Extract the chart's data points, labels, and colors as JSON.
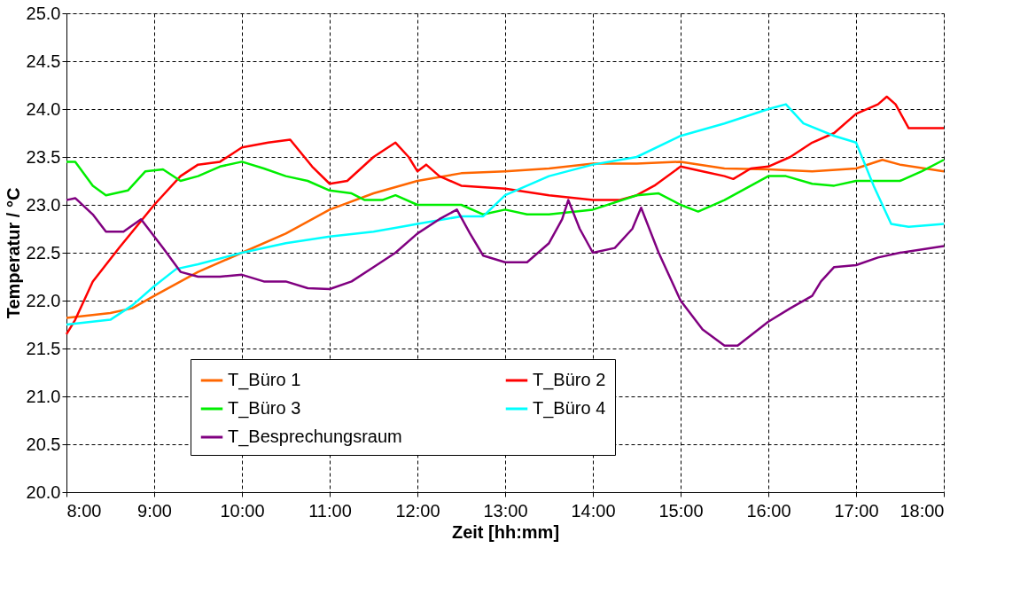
{
  "chart_data": {
    "type": "line",
    "xlabel": "Zeit [hh:mm]",
    "ylabel": "Temperatur / °C",
    "xlim": [
      8,
      18
    ],
    "ylim": [
      20,
      25
    ],
    "xticks": [
      {
        "value": 8,
        "label": "8:00"
      },
      {
        "value": 9,
        "label": "9:00"
      },
      {
        "value": 10,
        "label": "10:00"
      },
      {
        "value": 11,
        "label": "11:00"
      },
      {
        "value": 12,
        "label": "12:00"
      },
      {
        "value": 13,
        "label": "13:00"
      },
      {
        "value": 14,
        "label": "14:00"
      },
      {
        "value": 15,
        "label": "15:00"
      },
      {
        "value": 16,
        "label": "16:00"
      },
      {
        "value": 17,
        "label": "17:00"
      },
      {
        "value": 18,
        "label": "18:00"
      }
    ],
    "yticks": [
      {
        "value": 20,
        "label": "20.0"
      },
      20.5,
      {
        "value": 21,
        "label": "21.0"
      },
      21.5,
      {
        "value": 22,
        "label": "22.0"
      },
      22.5,
      {
        "value": 23,
        "label": "23.0"
      },
      23.5,
      {
        "value": 24,
        "label": "24.0"
      },
      24.5,
      {
        "value": 25,
        "label": "25.0"
      }
    ],
    "grid": true,
    "legend": "bottom left",
    "line_style": "solid",
    "marker": "none",
    "series": [
      {
        "name": "T_Büro 1",
        "color": "#ff6600",
        "x": [
          8,
          8.5,
          8.75,
          9,
          9.5,
          10,
          10.5,
          11,
          11.5,
          12,
          12.5,
          13,
          13.5,
          14,
          14.5,
          15,
          15.5,
          16,
          16.5,
          17,
          17.3,
          17.5,
          18
        ],
        "values": [
          21.82,
          21.87,
          21.92,
          22.05,
          22.3,
          22.5,
          22.7,
          22.95,
          23.12,
          23.25,
          23.33,
          23.35,
          23.38,
          23.43,
          23.43,
          23.45,
          23.38,
          23.37,
          23.35,
          23.38,
          23.47,
          23.42,
          23.35
        ]
      },
      {
        "name": "T_Büro 2",
        "color": "#ff0000",
        "x": [
          8,
          8.1,
          8.3,
          8.6,
          9,
          9.3,
          9.5,
          9.75,
          10,
          10.3,
          10.55,
          10.8,
          11,
          11.2,
          11.5,
          11.75,
          11.9,
          12,
          12.1,
          12.25,
          12.5,
          13,
          13.5,
          14,
          14.3,
          14.5,
          14.7,
          15,
          15.25,
          15.5,
          15.6,
          15.8,
          16,
          16.25,
          16.5,
          16.75,
          17,
          17.25,
          17.35,
          17.45,
          17.6,
          18
        ],
        "values": [
          21.65,
          21.8,
          22.2,
          22.55,
          23.0,
          23.3,
          23.42,
          23.45,
          23.6,
          23.65,
          23.68,
          23.4,
          23.22,
          23.25,
          23.5,
          23.65,
          23.5,
          23.35,
          23.42,
          23.3,
          23.2,
          23.17,
          23.1,
          23.05,
          23.05,
          23.1,
          23.2,
          23.4,
          23.35,
          23.3,
          23.27,
          23.38,
          23.4,
          23.5,
          23.65,
          23.75,
          23.95,
          24.05,
          24.13,
          24.05,
          23.8,
          23.8
        ]
      },
      {
        "name": "T_Büro 3",
        "color": "#00ee00",
        "x": [
          8,
          8.1,
          8.3,
          8.45,
          8.7,
          8.9,
          9.1,
          9.3,
          9.5,
          9.75,
          10,
          10.25,
          10.5,
          10.75,
          11,
          11.25,
          11.4,
          11.6,
          11.75,
          12,
          12.5,
          12.75,
          13,
          13.25,
          13.5,
          14,
          14.5,
          14.75,
          15,
          15.2,
          15.5,
          16,
          16.2,
          16.5,
          16.75,
          17,
          17.5,
          17.75,
          18
        ],
        "values": [
          23.45,
          23.45,
          23.2,
          23.1,
          23.15,
          23.35,
          23.37,
          23.25,
          23.3,
          23.4,
          23.45,
          23.38,
          23.3,
          23.25,
          23.15,
          23.12,
          23.05,
          23.05,
          23.1,
          23.0,
          23.0,
          22.9,
          22.95,
          22.9,
          22.9,
          22.95,
          23.1,
          23.12,
          23.0,
          22.93,
          23.05,
          23.3,
          23.3,
          23.22,
          23.2,
          23.25,
          23.25,
          23.35,
          23.47
        ]
      },
      {
        "name": "T_Büro 4",
        "color": "#00ffff",
        "x": [
          8,
          8.5,
          8.75,
          9,
          9.25,
          9.5,
          10,
          10.5,
          11,
          11.5,
          12,
          12.5,
          12.75,
          13,
          13.5,
          14,
          14.5,
          15,
          15.5,
          16,
          16.2,
          16.4,
          16.75,
          17,
          17.2,
          17.4,
          17.6,
          18
        ],
        "values": [
          21.75,
          21.8,
          21.95,
          22.15,
          22.33,
          22.38,
          22.5,
          22.6,
          22.67,
          22.72,
          22.8,
          22.88,
          22.88,
          23.1,
          23.3,
          23.42,
          23.5,
          23.72,
          23.85,
          24.0,
          24.05,
          23.85,
          23.72,
          23.65,
          23.2,
          22.8,
          22.77,
          22.8
        ]
      },
      {
        "name": "T_Besprechungsraum",
        "color": "#800080",
        "x": [
          8,
          8.1,
          8.3,
          8.45,
          8.65,
          8.85,
          9.1,
          9.3,
          9.5,
          9.75,
          10,
          10.25,
          10.5,
          10.75,
          11,
          11.25,
          11.5,
          11.75,
          12,
          12.25,
          12.45,
          12.6,
          12.75,
          13,
          13.25,
          13.5,
          13.65,
          13.72,
          13.85,
          14,
          14.25,
          14.45,
          14.55,
          14.75,
          15,
          15.25,
          15.5,
          15.65,
          16,
          16.25,
          16.5,
          16.6,
          16.75,
          17,
          17.25,
          17.5,
          18
        ],
        "values": [
          23.05,
          23.07,
          22.9,
          22.72,
          22.72,
          22.85,
          22.55,
          22.3,
          22.25,
          22.25,
          22.27,
          22.2,
          22.2,
          22.13,
          22.12,
          22.2,
          22.35,
          22.5,
          22.7,
          22.85,
          22.95,
          22.7,
          22.47,
          22.4,
          22.4,
          22.6,
          22.85,
          23.05,
          22.75,
          22.5,
          22.55,
          22.75,
          22.97,
          22.5,
          22.0,
          21.7,
          21.53,
          21.53,
          21.78,
          21.92,
          22.05,
          22.2,
          22.35,
          22.37,
          22.45,
          22.5,
          22.57
        ]
      }
    ]
  }
}
